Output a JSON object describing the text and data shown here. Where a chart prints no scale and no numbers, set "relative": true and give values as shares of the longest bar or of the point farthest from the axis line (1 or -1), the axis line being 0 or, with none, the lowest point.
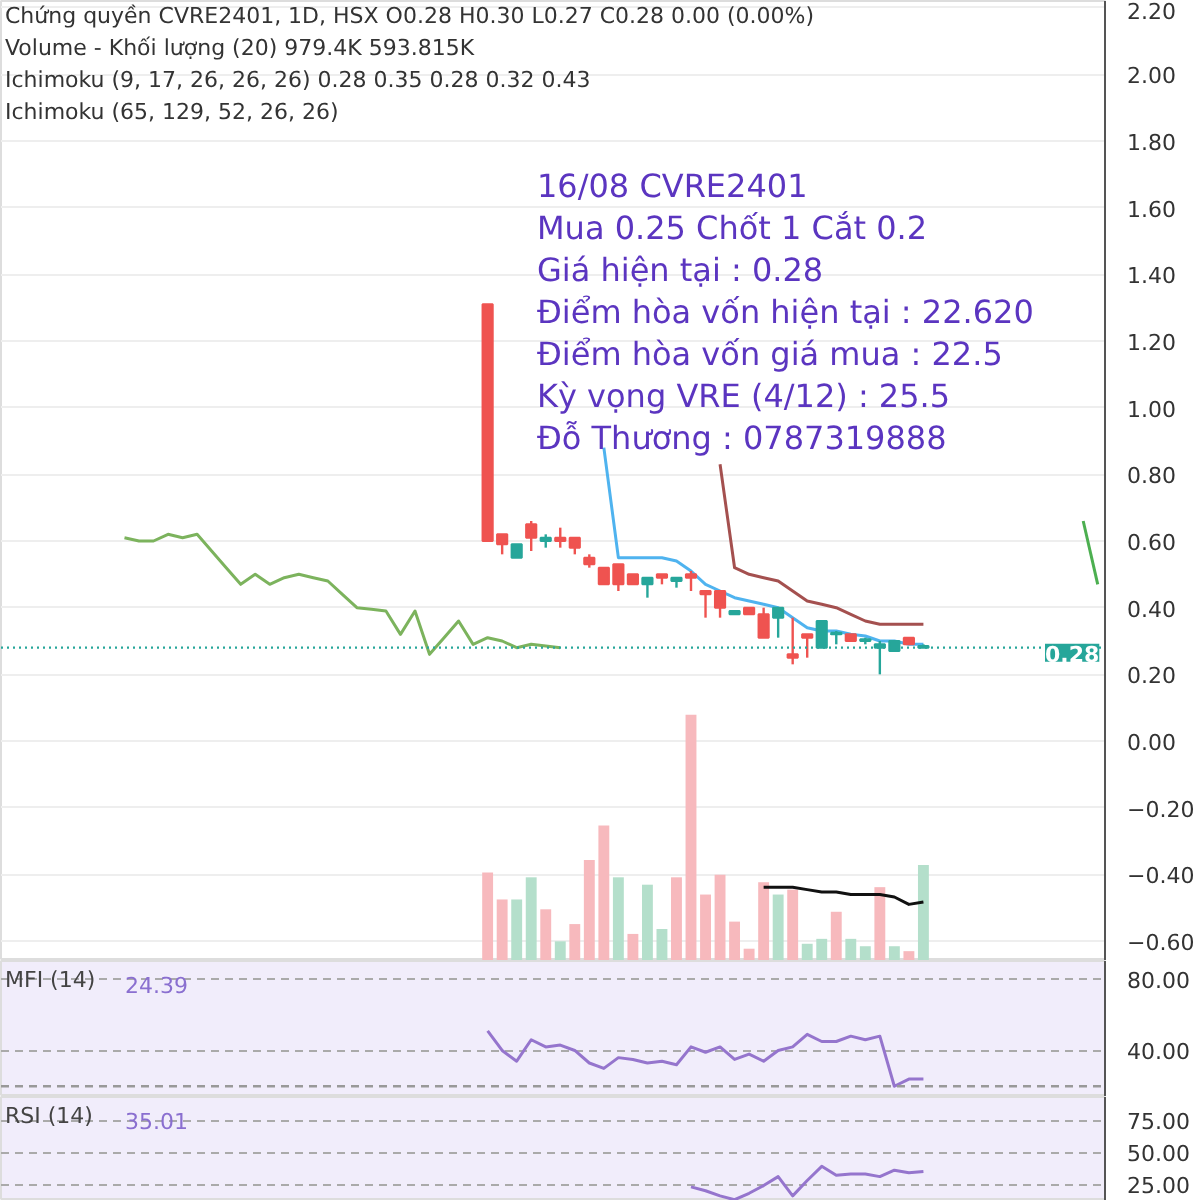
{
  "chart_data": [
    {
      "type": "candlestick",
      "categories": [
        null,
        null,
        null,
        null,
        null,
        null,
        null,
        null,
        null,
        null,
        null,
        null,
        null,
        null,
        null,
        null,
        null,
        null,
        null,
        null,
        null,
        null,
        null,
        null,
        null,
        null,
        null,
        null,
        null,
        null,
        null,
        null,
        null,
        null,
        null,
        null,
        null,
        null,
        null,
        null,
        null,
        null,
        null,
        null,
        null,
        null,
        null,
        null,
        null,
        null,
        null,
        null,
        null,
        null,
        null,
        null,
        null,
        null,
        null,
        null,
        null,
        null,
        null,
        null,
        null,
        null,
        null,
        null,
        null,
        null,
        null,
        null,
        null,
        null,
        null,
        null
      ],
      "ohlc": [
        null,
        null,
        null,
        null,
        null,
        null,
        null,
        null,
        null,
        null,
        null,
        null,
        null,
        null,
        null,
        null,
        null,
        null,
        null,
        null,
        null,
        null,
        null,
        null,
        null,
        null,
        null,
        null,
        null,
        null,
        null,
        null,
        null,
        [
          1.31,
          1.31,
          0.6,
          0.6
        ],
        [
          0.62,
          0.62,
          0.56,
          0.59
        ],
        [
          0.55,
          0.59,
          0.55,
          0.59
        ],
        [
          0.65,
          0.66,
          0.57,
          0.61
        ],
        [
          0.6,
          0.62,
          0.58,
          0.61
        ],
        [
          0.61,
          0.64,
          0.58,
          0.6
        ],
        [
          0.61,
          0.61,
          0.56,
          0.58
        ],
        [
          0.55,
          0.56,
          0.52,
          0.53
        ],
        [
          0.52,
          0.52,
          0.47,
          0.47
        ],
        [
          0.53,
          0.53,
          0.45,
          0.47
        ],
        [
          0.5,
          0.5,
          0.47,
          0.47
        ],
        [
          0.47,
          0.49,
          0.43,
          0.49
        ],
        [
          0.5,
          0.5,
          0.47,
          0.49
        ],
        [
          0.48,
          0.49,
          0.46,
          0.49
        ],
        [
          0.5,
          0.51,
          0.45,
          0.49
        ],
        [
          0.45,
          0.45,
          0.37,
          0.44
        ],
        [
          0.45,
          0.45,
          0.37,
          0.4
        ],
        [
          0.38,
          0.39,
          0.38,
          0.39
        ],
        [
          0.4,
          0.4,
          0.38,
          0.38
        ],
        [
          0.38,
          0.4,
          0.31,
          0.31
        ],
        [
          0.37,
          0.4,
          0.31,
          0.4
        ],
        [
          0.26,
          0.37,
          0.23,
          0.25
        ],
        [
          0.32,
          0.32,
          0.25,
          0.31
        ],
        [
          0.28,
          0.36,
          0.28,
          0.36
        ],
        [
          0.32,
          0.33,
          0.29,
          0.325
        ],
        [
          0.32,
          0.32,
          0.3,
          0.3
        ],
        [
          0.3,
          0.31,
          0.29,
          0.305
        ],
        [
          0.28,
          0.3,
          0.2,
          0.29
        ],
        [
          0.27,
          0.3,
          0.27,
          0.3
        ],
        [
          0.31,
          0.31,
          0.29,
          0.29
        ],
        [
          0.285,
          0.29,
          0.28,
          0.28
        ],
        null,
        null,
        null,
        null,
        null,
        null,
        null,
        null,
        null,
        null,
        null,
        null
      ],
      "colors": [
        null,
        null,
        null,
        null,
        null,
        null,
        null,
        null,
        null,
        null,
        null,
        null,
        null,
        null,
        null,
        null,
        null,
        null,
        null,
        null,
        null,
        null,
        null,
        null,
        null,
        null,
        null,
        null,
        null,
        null,
        null,
        null,
        null,
        "#ef5350",
        "#ef5350",
        "#26a69a",
        "#ef5350",
        "#26a69a",
        "#ef5350",
        "#ef5350",
        "#ef5350",
        "#ef5350",
        "#ef5350",
        "#ef5350",
        "#26a69a",
        "#ef5350",
        "#26a69a",
        "#ef5350",
        "#ef5350",
        "#ef5350",
        "#26a69a",
        "#ef5350",
        "#ef5350",
        "#26a69a",
        "#ef5350",
        "#ef5350",
        "#26a69a",
        "#26a69a",
        "#ef5350",
        "#26a69a",
        "#26a69a",
        "#26a69a",
        "#ef5350",
        "#26a69a",
        null,
        null,
        null,
        null,
        null,
        null,
        null,
        null,
        null,
        null,
        null,
        null
      ],
      "series": [
        {
          "type": "line",
          "color": "#4fb3ef",
          "values": [
            null,
            null,
            null,
            null,
            null,
            null,
            null,
            null,
            null,
            null,
            null,
            null,
            null,
            null,
            null,
            null,
            null,
            null,
            null,
            null,
            null,
            null,
            null,
            null,
            null,
            null,
            null,
            null,
            null,
            null,
            null,
            null,
            null,
            null,
            null,
            null,
            null,
            null,
            null,
            null,
            null,
            0.88,
            0.55,
            0.55,
            0.55,
            0.55,
            0.54,
            0.51,
            0.47,
            0.45,
            0.43,
            0.42,
            0.41,
            0.4,
            0.37,
            0.34,
            0.33,
            0.33,
            0.32,
            0.315,
            0.3,
            0.3,
            0.29,
            0.29,
            null,
            null,
            null,
            null,
            null,
            null,
            null,
            null,
            null,
            null,
            null,
            null
          ]
        },
        {
          "type": "line",
          "color": "#a4504f",
          "values": [
            null,
            null,
            null,
            null,
            null,
            null,
            null,
            null,
            null,
            null,
            null,
            null,
            null,
            null,
            null,
            null,
            null,
            null,
            null,
            null,
            null,
            null,
            null,
            null,
            null,
            null,
            null,
            null,
            null,
            null,
            null,
            null,
            null,
            null,
            null,
            null,
            null,
            null,
            null,
            null,
            null,
            null,
            null,
            null,
            null,
            null,
            null,
            null,
            null,
            0.83,
            0.52,
            0.5,
            0.49,
            0.48,
            0.45,
            0.42,
            0.41,
            0.4,
            0.38,
            0.36,
            0.35,
            0.35,
            0.35,
            0.35,
            null,
            null,
            null,
            null,
            null,
            null,
            null,
            null,
            null,
            null,
            null,
            null
          ]
        },
        {
          "type": "line",
          "color": "#7cb35d",
          "values": [
            null,
            null,
            null,
            null,
            null,
            null,
            null,
            null,
            0.61,
            0.6,
            0.6,
            0.62,
            0.61,
            0.62,
            0.57,
            0.52,
            0.47,
            0.5,
            0.47,
            0.49,
            0.5,
            0.49,
            0.48,
            0.44,
            0.4,
            0.395,
            0.39,
            0.32,
            0.39,
            0.26,
            0.31,
            0.36,
            0.29,
            0.31,
            0.3,
            0.28,
            0.29,
            0.285,
            0.28,
            null,
            null,
            null,
            null,
            null,
            null,
            null,
            null,
            null,
            null,
            null,
            null,
            null,
            null,
            null,
            null,
            null,
            null,
            null,
            null,
            null,
            null,
            null,
            null,
            null,
            null,
            null,
            null,
            null,
            null,
            null,
            null,
            null,
            null,
            null,
            null,
            null
          ]
        },
        {
          "type": "line",
          "color": "#4caf50",
          "values": [
            null,
            null,
            null,
            null,
            null,
            null,
            null,
            null,
            null,
            null,
            null,
            null,
            null,
            null,
            null,
            null,
            null,
            null,
            null,
            null,
            null,
            null,
            null,
            null,
            null,
            null,
            null,
            null,
            null,
            null,
            null,
            null,
            null,
            null,
            null,
            null,
            null,
            null,
            null,
            null,
            null,
            null,
            null,
            null,
            null,
            null,
            null,
            null,
            null,
            null,
            null,
            null,
            null,
            null,
            null,
            null,
            null,
            null,
            null,
            null,
            null,
            null,
            null,
            null,
            null,
            null,
            null,
            null,
            null,
            null,
            null,
            null,
            null,
            null,
            0.66,
            0.47
          ]
        }
      ],
      "ylim": [
        -0.66,
        2.22
      ],
      "yticks": [
        {
          "value": -0.6,
          "label": "−0.60"
        },
        {
          "value": -0.4,
          "label": "−0.40"
        },
        {
          "value": -0.2,
          "label": "−0.20"
        },
        {
          "value": 0,
          "label": "0.00"
        },
        {
          "value": 0.2,
          "label": "0.20"
        },
        {
          "value": 0.4,
          "label": "0.40"
        },
        {
          "value": 0.6,
          "label": "0.60"
        },
        {
          "value": 0.8,
          "label": "0.80"
        },
        {
          "value": 1.0,
          "label": "1.00"
        },
        {
          "value": 1.2,
          "label": "1.20"
        },
        {
          "value": 1.4,
          "label": "1.40"
        },
        {
          "value": 1.6,
          "label": "1.60"
        },
        {
          "value": 1.8,
          "label": "1.80"
        },
        {
          "value": 2.0,
          "label": "2.00"
        },
        {
          "value": 2.2,
          "label": "2.20"
        }
      ],
      "ref_lines": [
        {
          "axis": "y",
          "value": 0.28,
          "label": "0.28",
          "color": "#26a69a",
          "line_style": "dotted"
        }
      ],
      "grid": "y",
      "tick_labels": "y",
      "annotations": [
        "Chứng quyền CVRE2401, 1D, HSX O0.28 H0.30 L0.27 C0.28 0.00 (0.00%)",
        "Volume - Khối lượng (20) 979.4K 593.815K",
        "Ichimoku (9, 17, 26, 26, 26) 0.28 0.35 0.28 0.32 0.43",
        "Ichimoku (65, 129, 52, 26, 26)",
        "16/08 CVRE2401",
        "Mua 0.25 Chốt 1 Cắt 0.2",
        "Giá hiện tại : 0.28",
        "Điểm hòa vốn hiện tại : 22.620",
        "Điểm hòa vốn giá mua : 22.5",
        "Kỳ vọng VRE (4/12) : 25.5",
        "Đỗ Thương : 0787319888"
      ]
    },
    {
      "type": "bar",
      "relative": true,
      "categories": [
        null,
        null,
        null,
        null,
        null,
        null,
        null,
        null,
        null,
        null,
        null,
        null,
        null,
        null,
        null,
        null,
        null,
        null,
        null,
        null,
        null,
        null,
        null,
        null,
        null,
        null,
        null,
        null,
        null,
        null,
        null,
        null,
        null,
        null,
        null,
        null,
        null,
        null,
        null,
        null,
        null,
        null,
        null,
        null,
        null,
        null,
        null,
        null,
        null,
        null,
        null,
        null,
        null,
        null,
        null,
        null,
        null,
        null,
        null,
        null,
        null,
        null,
        null,
        null,
        null,
        null,
        null,
        null,
        null,
        null,
        null,
        null,
        null,
        null,
        null,
        null
      ],
      "values": [
        null,
        null,
        null,
        null,
        null,
        null,
        null,
        null,
        null,
        null,
        null,
        null,
        null,
        null,
        null,
        null,
        null,
        null,
        null,
        null,
        null,
        null,
        null,
        null,
        null,
        null,
        null,
        null,
        null,
        null,
        null,
        null,
        null,
        0.36,
        0.25,
        0.25,
        0.34,
        0.21,
        0.08,
        0.15,
        0.41,
        0.55,
        0.34,
        0.11,
        0.31,
        0.13,
        0.34,
        1,
        0.27,
        0.35,
        0.16,
        0.05,
        0.32,
        0.27,
        0.29,
        0.07,
        0.09,
        0.2,
        0.09,
        0.06,
        0.3,
        0.06,
        0.04,
        0.39,
        null,
        null,
        null,
        null,
        null,
        null,
        null,
        null,
        null,
        null,
        null,
        null
      ],
      "colors": [
        null,
        null,
        null,
        null,
        null,
        null,
        null,
        null,
        null,
        null,
        null,
        null,
        null,
        null,
        null,
        null,
        null,
        null,
        null,
        null,
        null,
        null,
        null,
        null,
        null,
        null,
        null,
        null,
        null,
        null,
        null,
        null,
        null,
        "#f7b9bd",
        "#f7b9bd",
        "#b4dfcb",
        "#b4dfcb",
        "#f7b9bd",
        "#b4dfcb",
        "#f7b9bd",
        "#f7b9bd",
        "#f7b9bd",
        "#b4dfcb",
        "#f7b9bd",
        "#b4dfcb",
        "#b4dfcb",
        "#f7b9bd",
        "#f7b9bd",
        "#f7b9bd",
        "#f7b9bd",
        "#f7b9bd",
        "#f7b9bd",
        "#f7b9bd",
        "#b4dfcb",
        "#f7b9bd",
        "#b4dfcb",
        "#b4dfcb",
        "#f7b9bd",
        "#b4dfcb",
        "#b4dfcb",
        "#f7b9bd",
        "#b4dfcb",
        "#f7b9bd",
        "#b4dfcb",
        null,
        null,
        null,
        null,
        null,
        null,
        null,
        null,
        null,
        null,
        null,
        null
      ],
      "series": [
        {
          "type": "line",
          "color": "#111111",
          "values": [
            null,
            null,
            null,
            null,
            null,
            null,
            null,
            null,
            null,
            null,
            null,
            null,
            null,
            null,
            null,
            null,
            null,
            null,
            null,
            null,
            null,
            null,
            null,
            null,
            null,
            null,
            null,
            null,
            null,
            null,
            null,
            null,
            null,
            null,
            null,
            null,
            null,
            null,
            null,
            null,
            null,
            null,
            null,
            null,
            null,
            null,
            null,
            null,
            null,
            null,
            null,
            null,
            0.3,
            0.3,
            0.3,
            0.29,
            0.28,
            0.28,
            0.27,
            0.27,
            0.27,
            0.26,
            0.23,
            0.24,
            null,
            null,
            null,
            null,
            null,
            null,
            null,
            null,
            null,
            null,
            null,
            null
          ]
        }
      ]
    },
    {
      "type": "line",
      "title": "MFI (14)",
      "annotations": [
        "24.39"
      ],
      "categories": [
        null,
        null,
        null,
        null,
        null,
        null,
        null,
        null,
        null,
        null,
        null,
        null,
        null,
        null,
        null,
        null,
        null,
        null,
        null,
        null,
        null,
        null,
        null,
        null,
        null,
        null,
        null,
        null,
        null,
        null,
        null,
        null,
        null,
        null,
        null,
        null,
        null,
        null,
        null,
        null,
        null,
        null,
        null,
        null,
        null,
        null,
        null,
        null,
        null,
        null,
        null,
        null,
        null,
        null,
        null,
        null,
        null,
        null,
        null,
        null,
        null,
        null,
        null,
        null,
        null,
        null,
        null,
        null,
        null,
        null,
        null,
        null,
        null,
        null,
        null,
        null
      ],
      "series": [
        {
          "color": "#9575cd",
          "values": [
            null,
            null,
            null,
            null,
            null,
            null,
            null,
            null,
            null,
            null,
            null,
            null,
            null,
            null,
            null,
            null,
            null,
            null,
            null,
            null,
            null,
            null,
            null,
            null,
            null,
            null,
            null,
            null,
            null,
            null,
            null,
            null,
            null,
            51,
            40,
            34,
            46,
            42,
            43,
            40,
            33,
            30,
            36,
            35,
            33,
            34,
            32,
            42,
            39,
            42,
            35,
            38,
            34,
            40,
            42,
            49,
            45,
            45,
            48,
            46,
            48,
            20,
            24,
            24,
            null,
            null,
            null,
            null,
            null,
            null,
            null,
            null,
            null,
            null,
            null,
            null
          ]
        }
      ],
      "ylim": [
        14,
        90
      ],
      "yticks": [
        {
          "value": 40,
          "label": "40.00"
        },
        {
          "value": 80,
          "label": "80.00"
        }
      ],
      "ref_lines": [
        {
          "axis": "y",
          "value": 20,
          "color": "#999999",
          "line_style": "dashed"
        }
      ],
      "grid": "y",
      "tick_labels": "y"
    },
    {
      "type": "line",
      "title": "RSI (14)",
      "annotations": [
        "35.01"
      ],
      "categories": [
        null,
        null,
        null,
        null,
        null,
        null,
        null,
        null,
        null,
        null,
        null,
        null,
        null,
        null,
        null,
        null,
        null,
        null,
        null,
        null,
        null,
        null,
        null,
        null,
        null,
        null,
        null,
        null,
        null,
        null,
        null,
        null,
        null,
        null,
        null,
        null,
        null,
        null,
        null,
        null,
        null,
        null,
        null,
        null,
        null,
        null,
        null,
        null,
        null,
        null,
        null,
        null,
        null,
        null,
        null,
        null,
        null,
        null,
        null,
        null,
        null,
        null,
        null,
        null,
        null,
        null,
        null,
        null,
        null,
        null,
        null,
        null,
        null,
        null,
        null,
        null
      ],
      "series": [
        {
          "color": "#9575cd",
          "values": [
            null,
            null,
            null,
            null,
            null,
            null,
            null,
            null,
            null,
            null,
            null,
            null,
            null,
            null,
            null,
            null,
            null,
            null,
            null,
            null,
            null,
            null,
            null,
            null,
            null,
            null,
            null,
            null,
            null,
            null,
            null,
            null,
            null,
            null,
            null,
            null,
            null,
            null,
            null,
            null,
            null,
            null,
            null,
            null,
            null,
            null,
            null,
            23,
            20,
            16,
            13,
            18,
            24,
            31,
            16,
            28,
            39,
            32,
            33,
            33,
            31,
            36,
            34,
            35,
            null,
            null,
            null,
            null,
            null,
            null,
            null,
            null,
            null,
            null,
            null,
            null
          ]
        }
      ],
      "ylim": [
        12,
        93
      ],
      "yticks": [
        {
          "value": 25,
          "label": "25.00"
        },
        {
          "value": 50,
          "label": "50.00"
        },
        {
          "value": 75,
          "label": "75.00"
        }
      ],
      "grid": "y",
      "tick_labels": "y"
    }
  ]
}
